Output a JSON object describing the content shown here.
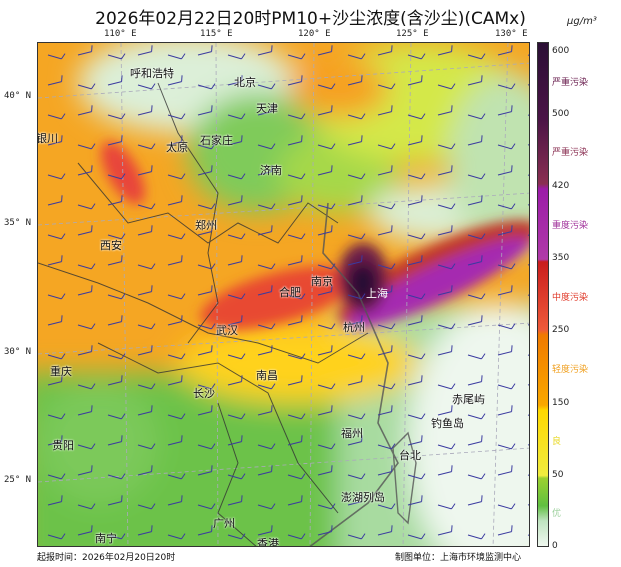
{
  "title": "2026年02月22日20时PM10+沙尘浓度(含沙尘)(CAMx)",
  "unit": "μg/m³",
  "lon_labels": [
    "110° E",
    "115° E",
    "120° E",
    "125° E",
    "130° E"
  ],
  "lat_labels": [
    "40° N",
    "35° N",
    "30° N",
    "25° N"
  ],
  "cities": [
    "呼和浩特",
    "北京",
    "天津",
    "银川",
    "太原",
    "石家庄",
    "济南",
    "郑州",
    "西安",
    "南京",
    "合肥",
    "上海",
    "杭州",
    "武汉",
    "重庆",
    "长沙",
    "南昌",
    "赤尾屿",
    "钓鱼岛",
    "福州",
    "贵阳",
    "台北",
    "澎湖列岛",
    "南宁",
    "广州",
    "香港"
  ],
  "colorbar": {
    "ticks": [
      "600",
      "500",
      "420",
      "350",
      "250",
      "150",
      "50",
      "0"
    ],
    "levels": [
      {
        "label": "严重污染",
        "color": "#6a1f4f"
      },
      {
        "label": "严重污染",
        "color": "#8a2f52"
      },
      {
        "label": "重度污染",
        "color": "#a0309a"
      },
      {
        "label": "中度污染",
        "color": "#e03a2a"
      },
      {
        "label": "轻度污染",
        "color": "#f0a020"
      },
      {
        "label": "良",
        "color": "#e8d820"
      },
      {
        "label": "优",
        "color": "#9cd09c"
      }
    ]
  },
  "footer": {
    "issue": "起报时间：2026年02月20日20时",
    "producer": "制图单位：上海市环境监测中心"
  }
}
